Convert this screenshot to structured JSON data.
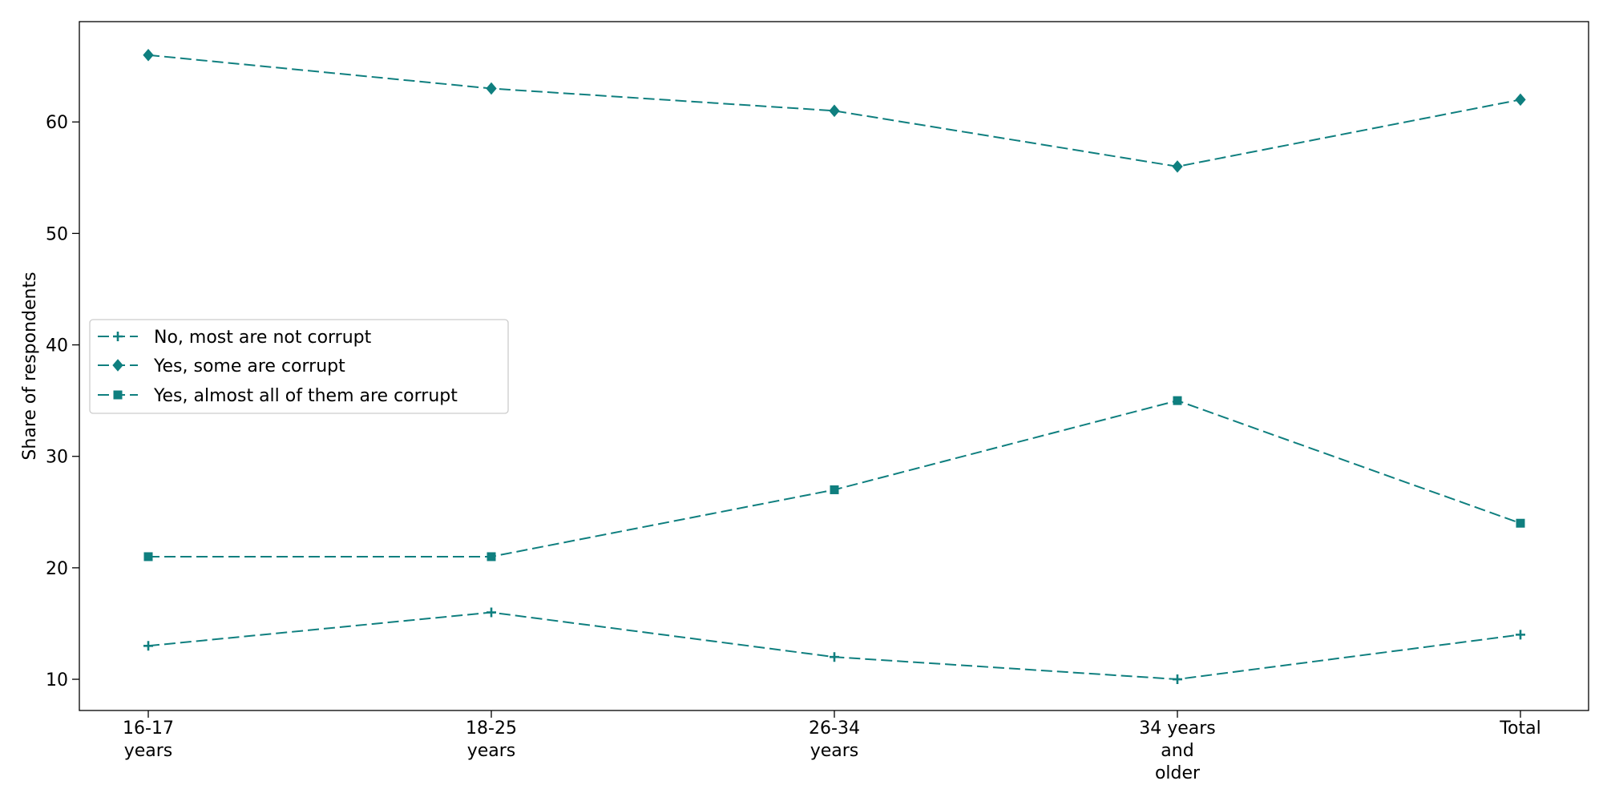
{
  "chart_data": {
    "type": "line",
    "title": "",
    "xlabel": "",
    "ylabel": "Share of respondents",
    "categories": [
      [
        "16-17",
        "years"
      ],
      [
        "18-25",
        "years"
      ],
      [
        "26-34",
        "years"
      ],
      [
        "34 years",
        "and",
        "older"
      ],
      [
        "Total"
      ]
    ],
    "ylim": [
      7.2,
      69.0
    ],
    "yticks": [
      10,
      20,
      30,
      40,
      50,
      60
    ],
    "grid": false,
    "legend_position": "center-left",
    "line_color": "#0f7f7f",
    "line_style": "dashed",
    "series": [
      {
        "name": "No, most are not corrupt",
        "marker": "plus",
        "values": [
          13,
          16,
          12,
          10,
          14
        ]
      },
      {
        "name": "Yes, some are corrupt",
        "marker": "diamond",
        "values": [
          66,
          63,
          61,
          56,
          62
        ]
      },
      {
        "name": "Yes, almost all of them are corrupt",
        "marker": "square",
        "values": [
          21,
          21,
          27,
          35,
          24
        ]
      }
    ]
  }
}
